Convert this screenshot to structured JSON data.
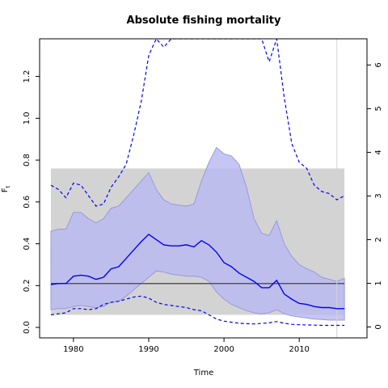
{
  "chart_data": {
    "type": "line",
    "title": "Absolute fishing mortality",
    "xlabel": "Time",
    "ylabel": "F",
    "ylabel_subscript": "t",
    "xlim": [
      1975.5,
      2019.0
    ],
    "ylim": [
      -0.05,
      1.38
    ],
    "y2lim": [
      -0.25,
      6.6
    ],
    "x_ticks": [
      1980,
      1990,
      2000,
      2010
    ],
    "y_ticks": [
      0.0,
      0.2,
      0.4,
      0.6,
      0.8,
      1.0,
      1.2
    ],
    "y2_ticks": [
      0,
      1,
      2,
      3,
      4,
      5,
      6
    ],
    "reference_band": {
      "x": [
        1977,
        2016
      ],
      "y": [
        0.06,
        0.76
      ],
      "color": "#d3d3d3"
    },
    "reference_line": {
      "y": 0.21,
      "x": [
        1977,
        2016
      ],
      "color": "#555555"
    },
    "vertical_marker": {
      "x": 2015,
      "color": "#d3d3d3"
    },
    "colors": {
      "median": "#0000ff",
      "inner_band": "#aaaaee",
      "outer_band": "#e6e6ff"
    },
    "x": [
      1977,
      1978,
      1979,
      1980,
      1981,
      1982,
      1983,
      1984,
      1985,
      1986,
      1987,
      1988,
      1989,
      1990,
      1991,
      1992,
      1993,
      1994,
      1995,
      1996,
      1997,
      1998,
      1999,
      2000,
      2001,
      2002,
      2003,
      2004,
      2005,
      2006,
      2007,
      2008,
      2009,
      2010,
      2011,
      2012,
      2013,
      2014,
      2015,
      2016
    ],
    "series": [
      {
        "values": [
          0.205,
          0.21,
          0.21,
          0.245,
          0.25,
          0.245,
          0.23,
          0.24,
          0.28,
          0.29,
          0.33,
          0.37,
          0.41,
          0.445,
          0.42,
          0.395,
          0.39,
          0.39,
          0.395,
          0.385,
          0.415,
          0.395,
          0.36,
          0.31,
          0.29,
          0.26,
          0.24,
          0.22,
          0.19,
          0.19,
          0.225,
          0.16,
          0.135,
          0.115,
          0.11,
          0.1,
          0.095,
          0.095,
          0.09,
          0.09
        ]
      },
      {
        "values": [
          0.46,
          0.47,
          0.47,
          0.55,
          0.55,
          0.52,
          0.5,
          0.52,
          0.57,
          0.58,
          0.62,
          0.66,
          0.7,
          0.74,
          0.66,
          0.61,
          0.59,
          0.585,
          0.58,
          0.59,
          0.7,
          0.79,
          0.86,
          0.83,
          0.82,
          0.78,
          0.67,
          0.52,
          0.45,
          0.44,
          0.51,
          0.4,
          0.34,
          0.3,
          0.28,
          0.265,
          0.24,
          0.23,
          0.22,
          0.235
        ]
      },
      {
        "values": [
          0.085,
          0.09,
          0.09,
          0.1,
          0.105,
          0.1,
          0.095,
          0.1,
          0.12,
          0.125,
          0.15,
          0.18,
          0.21,
          0.24,
          0.27,
          0.265,
          0.255,
          0.25,
          0.245,
          0.245,
          0.24,
          0.22,
          0.17,
          0.135,
          0.11,
          0.095,
          0.08,
          0.07,
          0.065,
          0.07,
          0.085,
          0.065,
          0.055,
          0.05,
          0.045,
          0.04,
          0.038,
          0.035,
          0.035,
          0.035
        ]
      },
      {
        "values": [
          0.68,
          0.66,
          0.62,
          0.69,
          0.68,
          0.63,
          0.58,
          0.59,
          0.67,
          0.72,
          0.78,
          0.92,
          1.08,
          1.3,
          1.38,
          1.34,
          1.38,
          1.38,
          1.38,
          1.38,
          1.38,
          1.38,
          1.38,
          1.38,
          1.38,
          1.38,
          1.38,
          1.38,
          1.38,
          1.27,
          1.38,
          1.1,
          0.88,
          0.79,
          0.76,
          0.68,
          0.65,
          0.64,
          0.61,
          0.63
        ]
      },
      {
        "values": [
          0.06,
          0.065,
          0.07,
          0.09,
          0.09,
          0.085,
          0.09,
          0.11,
          0.12,
          0.125,
          0.135,
          0.145,
          0.15,
          0.14,
          0.12,
          0.11,
          0.105,
          0.1,
          0.095,
          0.085,
          0.08,
          0.06,
          0.04,
          0.03,
          0.025,
          0.02,
          0.018,
          0.017,
          0.019,
          0.022,
          0.028,
          0.02,
          0.015,
          0.013,
          0.012,
          0.011,
          0.01,
          0.01,
          0.01,
          0.01
        ]
      }
    ]
  }
}
